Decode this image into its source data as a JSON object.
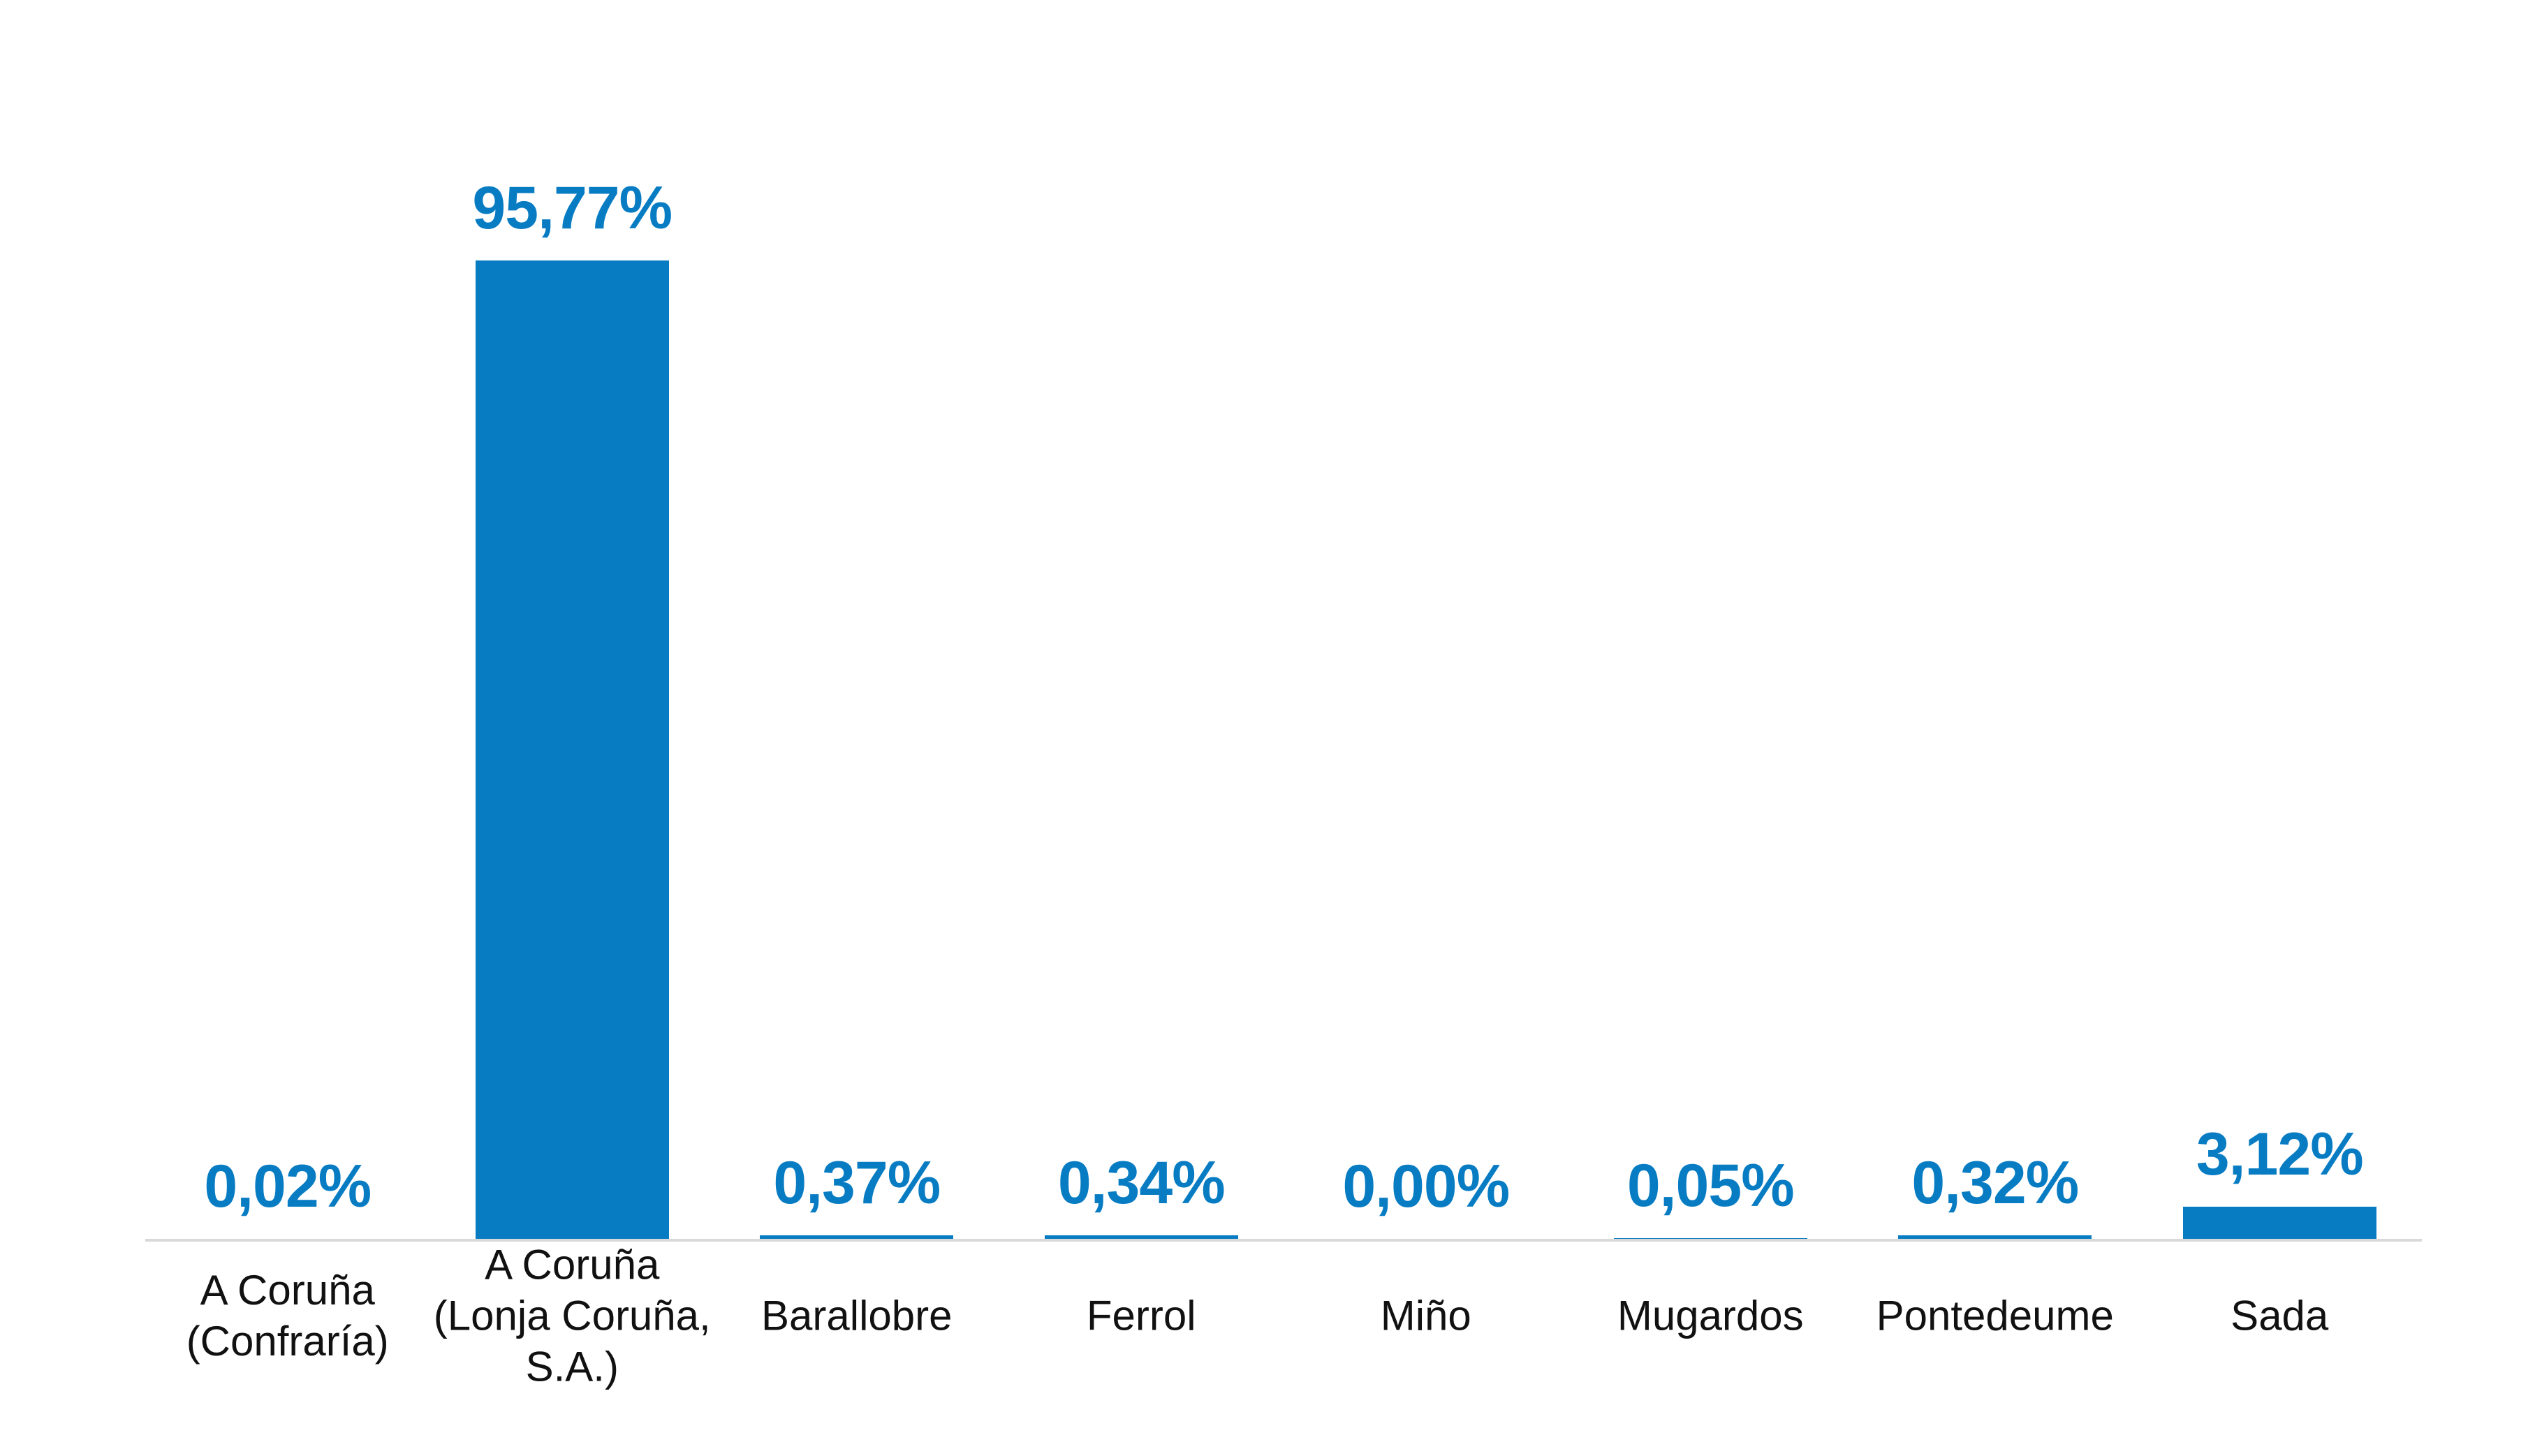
{
  "page": {
    "background": "#ffffff"
  },
  "chart_data": {
    "type": "bar",
    "title": "",
    "xlabel": "",
    "ylabel": "",
    "categories": [
      "A Coruña (Confraría)",
      "A Coruña (Lonja Coruña, S.A.)",
      "Barallobre",
      "Ferrol",
      "Miño",
      "Mugardos",
      "Pontedeume",
      "Sada"
    ],
    "category_label_lines": [
      [
        "A Coruña",
        "(Confraría)"
      ],
      [
        "A Coruña",
        "(Lonja Coruña,",
        "S.A.)"
      ],
      [
        "Barallobre"
      ],
      [
        "Ferrol"
      ],
      [
        "Miño"
      ],
      [
        "Mugardos"
      ],
      [
        "Pontedeume"
      ],
      [
        "Sada"
      ]
    ],
    "values": [
      0.02,
      95.77,
      0.37,
      0.34,
      0.0,
      0.05,
      0.32,
      3.12
    ],
    "value_labels": [
      "0,02%",
      "95,77%",
      "0,37%",
      "0,34%",
      "0,00%",
      "0,05%",
      "0,32%",
      "3,12%"
    ],
    "unit": "%",
    "decimal_separator": ",",
    "ylim": [
      0,
      100
    ],
    "grid": false,
    "legend": false,
    "data_labels_position": "above-bar",
    "colors": {
      "bar": "#087cc3",
      "data_label": "#087cc3",
      "category_label": "#111111",
      "axis_line": "#d9d9d9",
      "background": "#ffffff"
    }
  }
}
